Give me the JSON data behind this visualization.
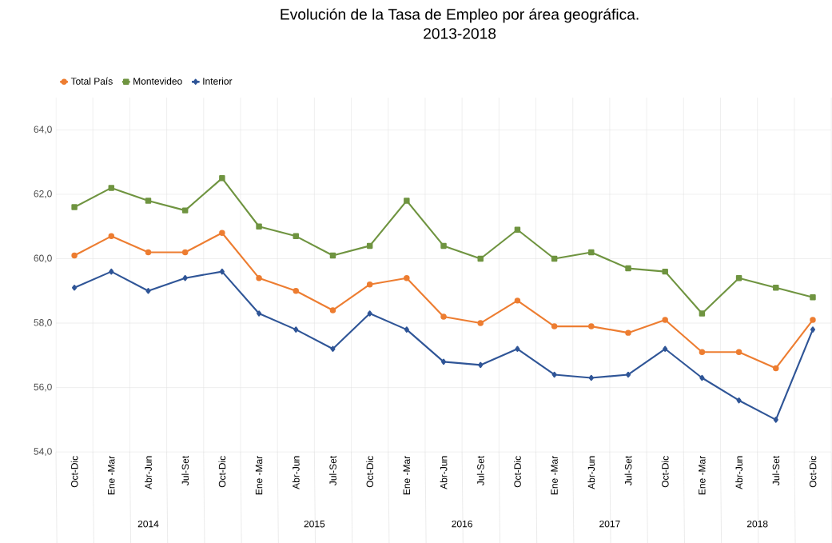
{
  "chart_data": {
    "type": "line",
    "title": "Evolución de la Tasa de Empleo por área geográfica.",
    "subtitle": "2013-2018",
    "categories": [
      "Oct-Dic",
      "Ene -Mar",
      "Abr-Jun",
      "Jul-Set",
      "Oct-Dic",
      "Ene -Mar",
      "Abr-Jun",
      "Jul-Set",
      "Oct-Dic",
      "Ene -Mar",
      "Abr-Jun",
      "Jul-Set",
      "Oct-Dic",
      "Ene -Mar",
      "Abr-Jun",
      "Jul-Set",
      "Oct-Dic",
      "Ene -Mar",
      "Abr-Jun",
      "Jul-Set",
      "Oct-Dic"
    ],
    "series": [
      {
        "name": "Total País",
        "color": "#ed7d31",
        "marker": "circle",
        "values": [
          60.1,
          60.7,
          60.2,
          60.2,
          60.8,
          59.4,
          59.0,
          58.4,
          59.2,
          59.4,
          58.2,
          58.0,
          58.7,
          57.9,
          57.9,
          57.7,
          58.1,
          57.1,
          57.1,
          56.6,
          58.1
        ]
      },
      {
        "name": "Montevideo",
        "color": "#6f9440",
        "marker": "square",
        "values": [
          61.6,
          62.2,
          61.8,
          61.5,
          62.5,
          61.0,
          60.7,
          60.1,
          60.4,
          61.8,
          60.4,
          60.0,
          60.9,
          60.0,
          60.2,
          59.7,
          59.6,
          58.3,
          59.4,
          59.1,
          58.8
        ]
      },
      {
        "name": "Interior",
        "color": "#2f5597",
        "marker": "diamond",
        "values": [
          59.1,
          59.6,
          59.0,
          59.4,
          59.6,
          58.3,
          57.8,
          57.2,
          58.3,
          57.8,
          56.8,
          56.7,
          57.2,
          56.4,
          56.3,
          56.4,
          57.2,
          56.3,
          55.6,
          55.0,
          57.8
        ]
      }
    ],
    "ylim": [
      54,
      65
    ],
    "yticks": [
      {
        "value": 54,
        "label": "54,0"
      },
      {
        "value": 56,
        "label": "56,0"
      },
      {
        "value": 58,
        "label": "58,0"
      },
      {
        "value": 60,
        "label": "60,0"
      },
      {
        "value": 62,
        "label": "62,0"
      },
      {
        "value": 64,
        "label": "64,0"
      }
    ],
    "grid": true,
    "legend": "top left",
    "line_style": "solid",
    "annotations": [
      "2014",
      "2015",
      "2016",
      "2017",
      "2018"
    ]
  }
}
